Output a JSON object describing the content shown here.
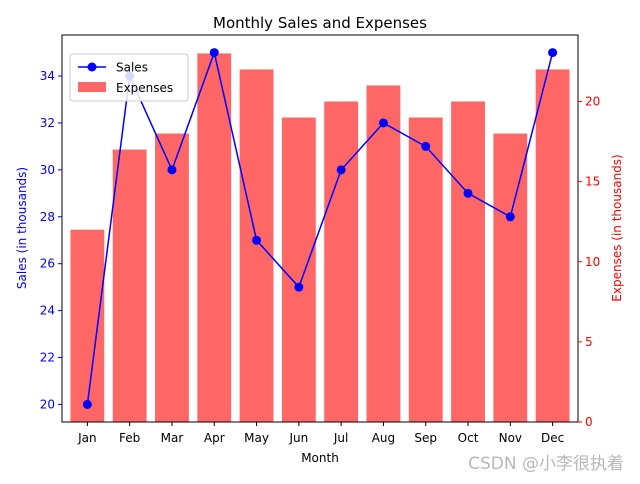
{
  "chart_data": {
    "type": "bar",
    "title": "Monthly Sales and Expenses",
    "xlabel": "Month",
    "categories": [
      "Jan",
      "Feb",
      "Mar",
      "Apr",
      "May",
      "Jun",
      "Jul",
      "Aug",
      "Sep",
      "Oct",
      "Nov",
      "Dec"
    ],
    "series": [
      {
        "name": "Sales",
        "type": "line",
        "axis": "left",
        "color": "#0000ff",
        "values": [
          20,
          34,
          30,
          35,
          27,
          25,
          30,
          32,
          31,
          29,
          28,
          35
        ]
      },
      {
        "name": "Expenses",
        "type": "bar",
        "axis": "right",
        "color": "#ff6666",
        "values": [
          12,
          17,
          18,
          23,
          22,
          19,
          20,
          21,
          19,
          20,
          18,
          22
        ]
      }
    ],
    "y_left": {
      "label": "Sales (in thousands)",
      "color": "#0000ff",
      "ylim": [
        19.25,
        35.75
      ],
      "ticks": [
        20,
        22,
        24,
        26,
        28,
        30,
        32,
        34
      ]
    },
    "y_right": {
      "label": "Expenses (in thousands)",
      "color": "#ff0000",
      "ylim": [
        0,
        24.15
      ],
      "ticks": [
        0,
        5,
        10,
        15,
        20
      ]
    },
    "legend": "top-left",
    "grid": false
  },
  "watermark": "CSDN @小李很执着"
}
